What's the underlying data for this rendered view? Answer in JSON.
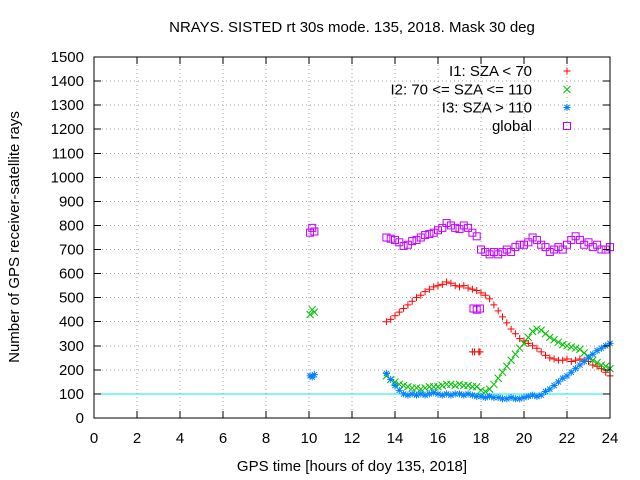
{
  "chart_data": {
    "type": "scatter",
    "title": "NRAYS. SISTED rt 30s mode. 135, 2018. Mask 30 deg",
    "xlabel": "GPS time [hours of doy 135, 2018]",
    "ylabel": "Number of GPS receiver-satellite rays",
    "xlim": [
      0,
      24
    ],
    "ylim": [
      0,
      1500
    ],
    "xticks": [
      0,
      2,
      4,
      6,
      8,
      10,
      12,
      14,
      16,
      18,
      20,
      22,
      24
    ],
    "yticks": [
      0,
      100,
      200,
      300,
      400,
      500,
      600,
      700,
      800,
      900,
      1000,
      1100,
      1200,
      1300,
      1400,
      1500
    ],
    "grid": true,
    "legend_position": "top-right",
    "reference_line": {
      "y": 100,
      "color": "#00eeee"
    },
    "x": [
      10.05,
      10.15,
      10.25,
      13.6,
      13.8,
      14.0,
      14.2,
      14.4,
      14.6,
      14.8,
      15.0,
      15.2,
      15.4,
      15.6,
      15.8,
      16.0,
      16.2,
      16.4,
      16.6,
      16.8,
      17.0,
      17.2,
      17.4,
      17.6,
      17.8,
      18.0,
      18.2,
      18.4,
      18.6,
      18.8,
      19.0,
      19.2,
      19.4,
      19.6,
      19.8,
      20.0,
      20.2,
      20.4,
      20.6,
      20.8,
      21.0,
      21.2,
      21.4,
      21.6,
      21.8,
      22.0,
      22.2,
      22.4,
      22.6,
      22.8,
      23.0,
      23.2,
      23.4,
      23.6,
      23.8,
      24.0
    ],
    "series": [
      {
        "name": "I1: SZA < 70",
        "color": "#ff0000",
        "marker": "plus",
        "values": [
          null,
          null,
          null,
          400,
          410,
          425,
          440,
          455,
          470,
          485,
          500,
          510,
          525,
          535,
          545,
          550,
          555,
          565,
          560,
          550,
          545,
          550,
          540,
          535,
          530,
          520,
          510,
          495,
          470,
          445,
          420,
          395,
          370,
          350,
          330,
          320,
          310,
          300,
          290,
          275,
          260,
          250,
          245,
          240,
          240,
          245,
          235,
          240,
          245,
          240,
          235,
          220,
          215,
          205,
          190,
          175
        ],
        "extra_points": [
          [
            17.6,
            275
          ],
          [
            17.7,
            275
          ],
          [
            17.9,
            275
          ],
          [
            17.95,
            275
          ]
        ]
      },
      {
        "name": "I2: 70 <= SZA <= 110",
        "color": "#00c000",
        "marker": "cross",
        "values": [
          430,
          450,
          440,
          175,
          160,
          150,
          140,
          135,
          130,
          125,
          125,
          120,
          125,
          130,
          130,
          130,
          135,
          140,
          140,
          135,
          140,
          135,
          135,
          130,
          130,
          115,
          110,
          120,
          140,
          165,
          190,
          215,
          240,
          265,
          290,
          310,
          335,
          360,
          370,
          365,
          350,
          335,
          325,
          315,
          305,
          300,
          295,
          290,
          285,
          270,
          255,
          240,
          230,
          220,
          215,
          205
        ],
        "extra_points": []
      },
      {
        "name": "I3: SZA > 110",
        "color": "#0080ff",
        "marker": "star",
        "values": [
          175,
          170,
          180,
          185,
          160,
          135,
          115,
          100,
          95,
          100,
          95,
          100,
          95,
          100,
          105,
          100,
          95,
          100,
          95,
          100,
          100,
          95,
          100,
          95,
          90,
          90,
          85,
          90,
          85,
          85,
          80,
          80,
          85,
          80,
          80,
          85,
          90,
          95,
          90,
          95,
          110,
          120,
          135,
          150,
          165,
          175,
          190,
          205,
          220,
          235,
          250,
          265,
          280,
          290,
          300,
          310
        ],
        "extra_points": []
      },
      {
        "name": "global",
        "color": "#c000ff",
        "marker": "square",
        "values": [
          770,
          790,
          775,
          750,
          745,
          740,
          730,
          715,
          720,
          735,
          740,
          750,
          760,
          765,
          770,
          780,
          790,
          810,
          800,
          790,
          785,
          800,
          790,
          770,
          755,
          700,
          690,
          680,
          690,
          680,
          690,
          700,
          690,
          710,
          720,
          720,
          730,
          750,
          740,
          720,
          710,
          690,
          700,
          710,
          700,
          720,
          740,
          755,
          740,
          720,
          730,
          710,
          720,
          700,
          700,
          710
        ],
        "extra_points": [
          [
            17.65,
            455
          ],
          [
            17.8,
            450
          ],
          [
            17.95,
            455
          ]
        ]
      }
    ]
  }
}
